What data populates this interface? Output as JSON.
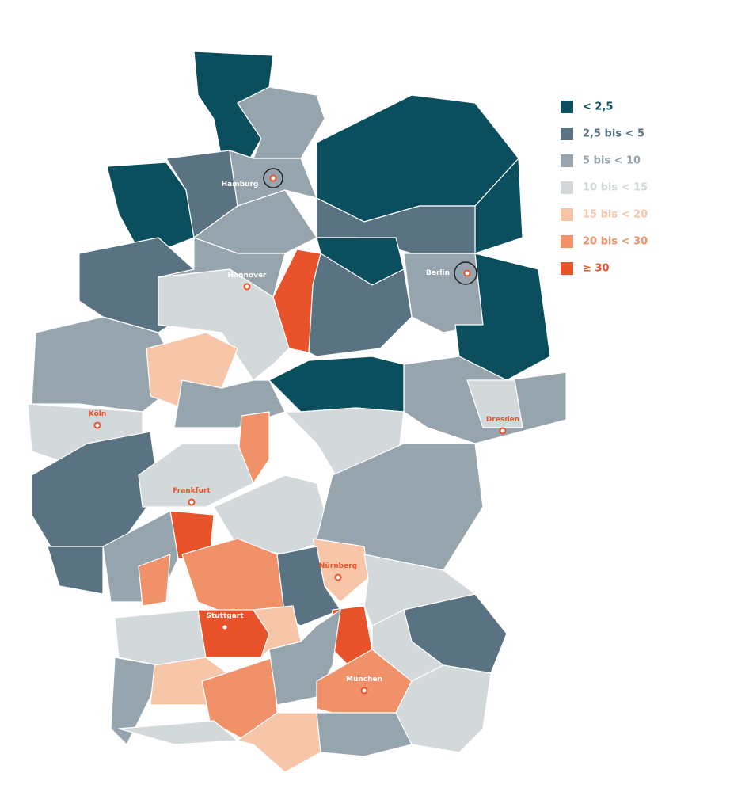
{
  "legend": [
    {
      "label": "< 2,5",
      "color": "#0b4f5f"
    },
    {
      "label": "2,5 bis < 5",
      "color": "#5a7382"
    },
    {
      "label": "5 bis < 10",
      "color": "#96a4ae"
    },
    {
      "label": "10 bis < 15",
      "color": "#d3d8db"
    },
    {
      "label": "15 bis < 20",
      "color": "#f7c5a8"
    },
    {
      "label": "20 bis < 30",
      "color": "#f1916a"
    },
    {
      "label": "≥ 30",
      "color": "#e9532b"
    }
  ],
  "cities": [
    {
      "label": "Hamburg"
    },
    {
      "label": "Hannover"
    },
    {
      "label": "Berlin"
    },
    {
      "label": "Köln"
    },
    {
      "label": "Dresden"
    },
    {
      "label": "Frankfurt"
    },
    {
      "label": "Nürnberg"
    },
    {
      "label": "Stuttgart"
    },
    {
      "label": "München"
    }
  ]
}
